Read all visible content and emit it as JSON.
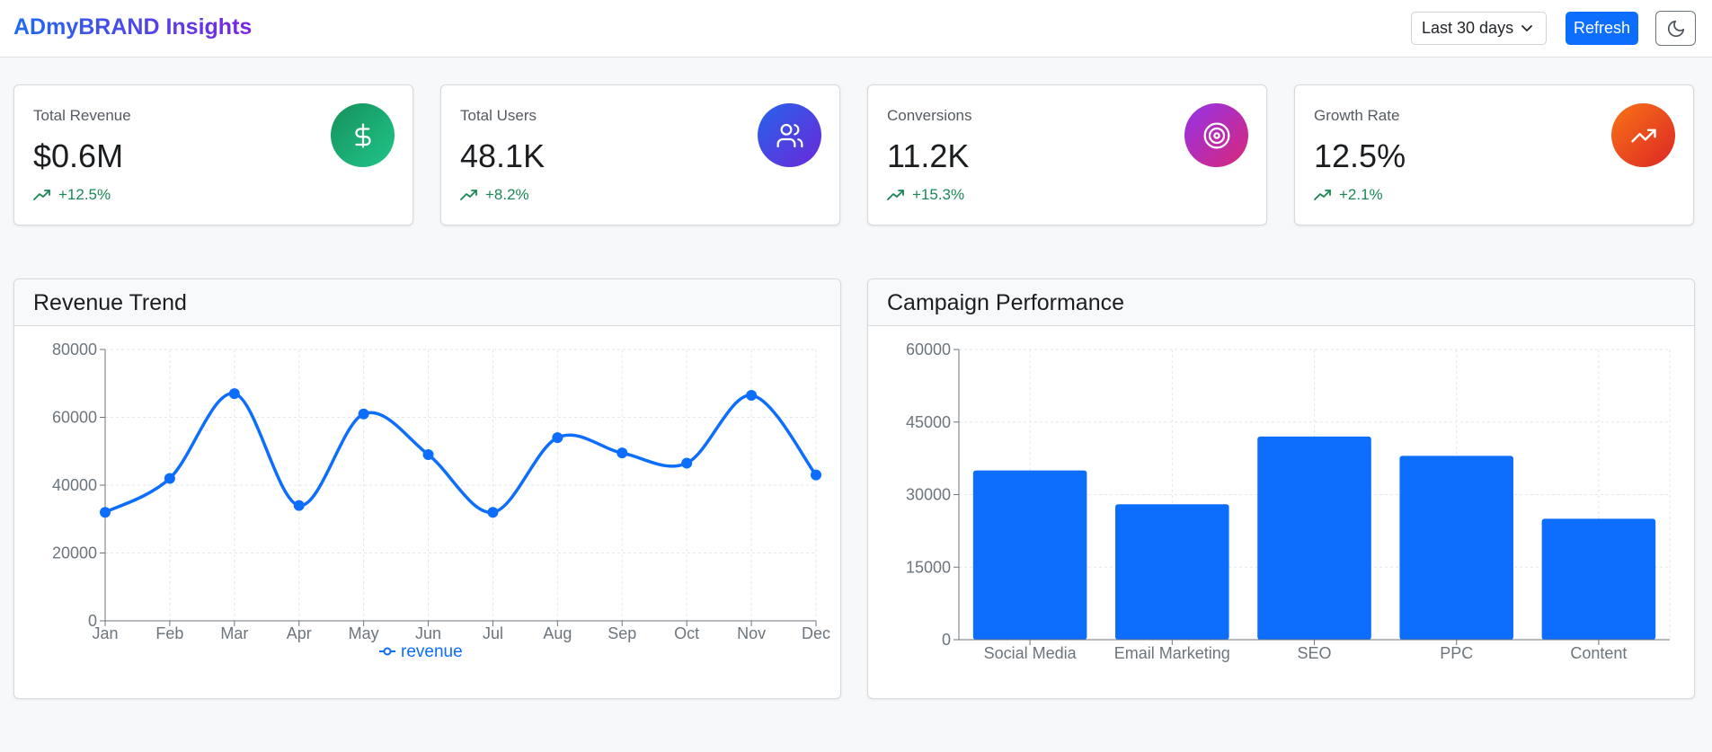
{
  "app": {
    "brand": "ADmyBRAND Insights"
  },
  "toolbar": {
    "range_value": "Last 30 days",
    "refresh_label": "Refresh",
    "theme_icon": "moon-icon"
  },
  "stats": [
    {
      "label": "Total Revenue",
      "value": "$0.6M",
      "change": "+12.5%",
      "icon": "dollar-icon",
      "colors": [
        "#15915a",
        "#20c58a"
      ]
    },
    {
      "label": "Total Users",
      "value": "48.1K",
      "change": "+8.2%",
      "icon": "users-icon",
      "colors": [
        "#2563eb",
        "#6d28d9"
      ]
    },
    {
      "label": "Conversions",
      "value": "11.2K",
      "change": "+15.3%",
      "icon": "target-icon",
      "colors": [
        "#9333ea",
        "#db2777"
      ]
    },
    {
      "label": "Growth Rate",
      "value": "12.5%",
      "change": "+2.1%",
      "icon": "trending-up-icon",
      "colors": [
        "#f97316",
        "#dc2626"
      ]
    }
  ],
  "colors": {
    "accent": "#0d6efd",
    "positive": "#198754"
  },
  "charts": {
    "revenue": {
      "title": "Revenue Trend"
    },
    "campaign": {
      "title": "Campaign Performance"
    }
  },
  "chart_data": [
    {
      "type": "line",
      "title": "Revenue Trend",
      "categories": [
        "Jan",
        "Feb",
        "Mar",
        "Apr",
        "May",
        "Jun",
        "Jul",
        "Aug",
        "Sep",
        "Oct",
        "Nov",
        "Dec"
      ],
      "series": [
        {
          "name": "revenue",
          "values": [
            32000,
            42000,
            67000,
            34000,
            61000,
            49000,
            32000,
            54000,
            49500,
            46500,
            66500,
            43000
          ]
        }
      ],
      "yticks": [
        0,
        20000,
        40000,
        60000,
        80000
      ],
      "ylim": [
        0,
        80000
      ],
      "grid": true,
      "legend": "bottom",
      "color": "#0d6efd"
    },
    {
      "type": "bar",
      "title": "Campaign Performance",
      "categories": [
        "Social Media",
        "Email Marketing",
        "SEO",
        "PPC",
        "Content"
      ],
      "values": [
        35000,
        28000,
        42000,
        38000,
        25000
      ],
      "yticks": [
        0,
        15000,
        30000,
        45000,
        60000
      ],
      "ylim": [
        0,
        60000
      ],
      "grid": true,
      "color": "#0d6efd"
    }
  ]
}
